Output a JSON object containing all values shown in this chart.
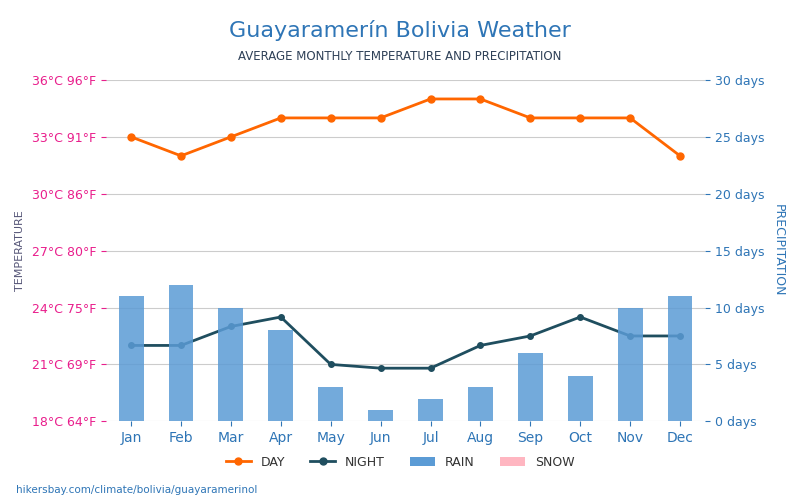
{
  "title": "Guayaramerín Bolivia Weather",
  "subtitle": "AVERAGE MONTHLY TEMPERATURE AND PRECIPITATION",
  "months": [
    "Jan",
    "Feb",
    "Mar",
    "Apr",
    "May",
    "Jun",
    "Jul",
    "Aug",
    "Sep",
    "Oct",
    "Nov",
    "Dec"
  ],
  "day_temp": [
    33,
    32,
    33,
    34,
    34,
    34,
    35,
    35,
    34,
    34,
    34,
    32
  ],
  "night_temp": [
    22,
    22,
    23,
    23.5,
    21,
    20.8,
    20.8,
    22,
    22.5,
    23.5,
    22.5,
    22.5
  ],
  "rain_days": [
    11,
    12,
    10,
    8,
    3,
    1,
    2,
    3,
    6,
    4,
    10,
    11
  ],
  "snow_days": [
    0,
    0,
    0,
    0,
    0,
    0,
    0,
    0,
    0,
    0,
    0,
    0
  ],
  "temp_ylim": [
    18,
    36
  ],
  "temp_yticks": [
    18,
    21,
    24,
    27,
    30,
    33,
    36
  ],
  "temp_ytick_labels_c": [
    "18°C",
    "21°C",
    "24°C",
    "27°C",
    "30°C",
    "33°C",
    "36°C"
  ],
  "temp_ytick_labels_f": [
    "64°F",
    "69°F",
    "75°F",
    "80°F",
    "86°F",
    "91°F",
    "96°F"
  ],
  "precip_ylim": [
    0,
    30
  ],
  "precip_yticks": [
    0,
    5,
    10,
    15,
    20,
    25,
    30
  ],
  "precip_ytick_labels": [
    "0 days",
    "5 days",
    "10 days",
    "15 days",
    "20 days",
    "25 days",
    "30 days"
  ],
  "bar_color": "#5B9BD5",
  "day_line_color": "#FF6600",
  "night_line_color": "#1F4E5F",
  "title_color": "#2E75B6",
  "subtitle_color": "#2E4057",
  "left_label_color": "#E91E8C",
  "right_label_color": "#2E75B6",
  "background_color": "#FFFFFF",
  "watermark": "hikersbay.com/climate/bolivia/guayaramerinol",
  "legend_labels": [
    "DAY",
    "NIGHT",
    "RAIN",
    "SNOW"
  ],
  "legend_colors_line": [
    "#FF6600",
    "#1F4E5F",
    "#5B9BD5",
    "#FFB6C1"
  ]
}
